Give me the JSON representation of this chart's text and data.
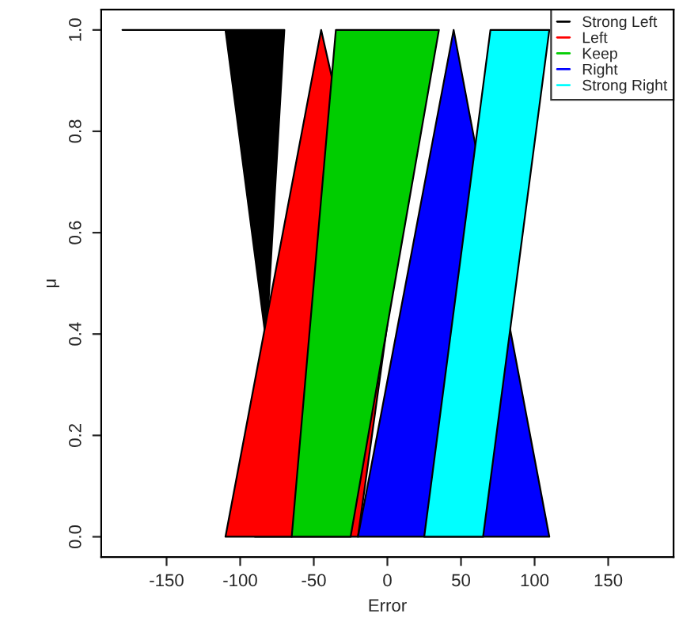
{
  "chart_data": {
    "type": "area",
    "xlabel": "Error",
    "ylabel": "μ",
    "xlim": [
      -194.4,
      194.4
    ],
    "ylim": [
      -0.04,
      1.04
    ],
    "xticks": [
      -150,
      -100,
      -50,
      0,
      50,
      100,
      150
    ],
    "yticks": [
      {
        "value": 0,
        "label": "0.0"
      },
      {
        "value": 0.2,
        "label": "0.2"
      },
      {
        "value": 0.4,
        "label": "0.4"
      },
      {
        "value": 0.6,
        "label": "0.6"
      },
      {
        "value": 0.8,
        "label": "0.8"
      },
      {
        "value": 1,
        "label": "1.0"
      }
    ],
    "legend": "top right",
    "grid": false,
    "series": [
      {
        "name": "Strong Left",
        "color": "#000000",
        "x": [
          -180,
          -110,
          -70,
          -90,
          -65,
          -110,
          -180
        ],
        "values": [
          1,
          1,
          1,
          0,
          0,
          1,
          1
        ]
      },
      {
        "name": "Left",
        "color": "#ff0000",
        "x": [
          -110,
          -45,
          0,
          -20,
          -70
        ],
        "values": [
          0,
          1,
          0.42,
          0,
          0
        ]
      },
      {
        "name": "Keep",
        "color": "#00cd00",
        "x": [
          -65,
          -25,
          35,
          -35
        ],
        "values": [
          0,
          0,
          1,
          1
        ]
      },
      {
        "name": "Right",
        "color": "#0000ff",
        "x": [
          -20,
          45,
          110
        ],
        "values": [
          0,
          1,
          0
        ]
      },
      {
        "name": "Strong Right",
        "color": "#00ffff",
        "x": [
          25,
          65,
          110,
          70
        ],
        "values": [
          0,
          0,
          1,
          1
        ]
      }
    ]
  }
}
